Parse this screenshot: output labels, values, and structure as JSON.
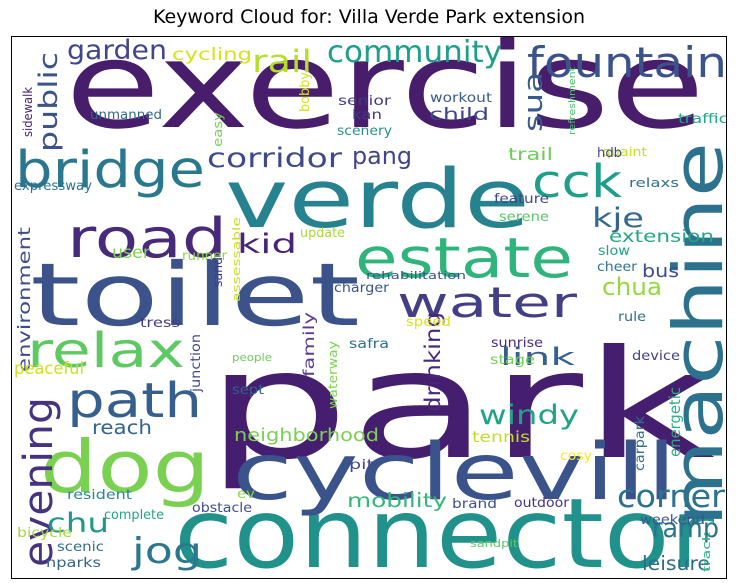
{
  "chart_data": {
    "type": "wordcloud",
    "title": "Keyword Cloud for: Villa Verde Park extension",
    "colormap": "viridis",
    "words": [
      {
        "text": "park",
        "weight": 100,
        "color": "#461e6f"
      },
      {
        "text": "exercise",
        "weight": 80,
        "color": "#471d6c"
      },
      {
        "text": "connector",
        "weight": 64,
        "color": "#21918c"
      },
      {
        "text": "toilet",
        "weight": 58,
        "color": "#3b528b"
      },
      {
        "text": "verde",
        "weight": 54,
        "color": "#25828e"
      },
      {
        "text": "cyclevill",
        "weight": 52,
        "color": "#3a538b"
      },
      {
        "text": "dog",
        "weight": 48,
        "color": "#7ad151"
      },
      {
        "text": "machine",
        "weight": 46,
        "color": "#2c728e"
      },
      {
        "text": "road",
        "weight": 36,
        "color": "#472a7a"
      },
      {
        "text": "estate",
        "weight": 37,
        "color": "#2fb47c"
      },
      {
        "text": "bridge",
        "weight": 34,
        "color": "#2a788e"
      },
      {
        "text": "path",
        "weight": 32,
        "color": "#355f8d"
      },
      {
        "text": "relax",
        "weight": 32,
        "color": "#5ec962"
      },
      {
        "text": "fountain",
        "weight": 28,
        "color": "#3b528b"
      },
      {
        "text": "cck",
        "weight": 30,
        "color": "#1f9e89"
      },
      {
        "text": "water",
        "weight": 28,
        "color": "#433e85"
      },
      {
        "text": "evening",
        "weight": 27,
        "color": "#46327e"
      },
      {
        "text": "jog",
        "weight": 24,
        "color": "#2a788e"
      },
      {
        "text": "corner",
        "weight": 21,
        "color": "#2c728e"
      },
      {
        "text": "rail",
        "weight": 21,
        "color": "#b5de2b"
      },
      {
        "text": "community",
        "weight": 20,
        "color": "#1f9e89"
      },
      {
        "text": "garden",
        "weight": 18,
        "color": "#404688"
      },
      {
        "text": "corridor",
        "weight": 18,
        "color": "#3e4a89"
      },
      {
        "text": "kid",
        "weight": 18,
        "color": "#482475"
      },
      {
        "text": "windy",
        "weight": 18,
        "color": "#20a386"
      },
      {
        "text": "chu",
        "weight": 18,
        "color": "#1f988b"
      },
      {
        "text": "ramp",
        "weight": 18,
        "color": "#2c728e"
      },
      {
        "text": "public",
        "weight": 17,
        "color": "#3b528b"
      },
      {
        "text": "sua",
        "weight": 17,
        "color": "#38598c"
      },
      {
        "text": "kje",
        "weight": 18,
        "color": "#31688e"
      },
      {
        "text": "pang",
        "weight": 16,
        "color": "#414487"
      },
      {
        "text": "link",
        "weight": 16,
        "color": "#355f8d"
      },
      {
        "text": "chua",
        "weight": 16,
        "color": "#95d840"
      },
      {
        "text": "drinking",
        "weight": 14,
        "color": "#482878"
      },
      {
        "text": "reach",
        "weight": 13,
        "color": "#32648e"
      },
      {
        "text": "mobility",
        "weight": 13,
        "color": "#35b779"
      },
      {
        "text": "leisure",
        "weight": 13,
        "color": "#30698e"
      },
      {
        "text": "neighborhood",
        "weight": 12,
        "color": "#7ad151"
      },
      {
        "text": "bus",
        "weight": 12,
        "color": "#3e4c8a"
      },
      {
        "text": "extension",
        "weight": 11,
        "color": "#22a884"
      },
      {
        "text": "environment",
        "weight": 11,
        "color": "#3e4c8a"
      },
      {
        "text": "peaceful",
        "weight": 11,
        "color": "#d0e11c"
      },
      {
        "text": "cycling",
        "weight": 11,
        "color": "#d8e219"
      },
      {
        "text": "child",
        "weight": 11,
        "color": "#3f4788"
      },
      {
        "text": "trail",
        "weight": 11,
        "color": "#6ece58"
      },
      {
        "text": "user",
        "weight": 11,
        "color": "#7fd34e"
      },
      {
        "text": "family",
        "weight": 10,
        "color": "#5c3c8a"
      },
      {
        "text": "energetic",
        "weight": 10,
        "color": "#29af7f"
      },
      {
        "text": "tennis",
        "weight": 10,
        "color": "#bddf26"
      },
      {
        "text": "outdoor",
        "weight": 9,
        "color": "#46337e"
      },
      {
        "text": "weekend",
        "weight": 9,
        "color": "#39568c"
      },
      {
        "text": "resident",
        "weight": 9,
        "color": "#24868e"
      },
      {
        "text": "complete",
        "weight": 9,
        "color": "#20a486"
      },
      {
        "text": "obstacle",
        "weight": 9,
        "color": "#3d4d8a"
      },
      {
        "text": "scenic",
        "weight": 9,
        "color": "#2d708e"
      },
      {
        "text": "nparks",
        "weight": 9,
        "color": "#33638d"
      },
      {
        "text": "sidewalk",
        "weight": 8,
        "color": "#482173"
      },
      {
        "text": "unmanned",
        "weight": 9,
        "color": "#31688e"
      },
      {
        "text": "easy",
        "weight": 8,
        "color": "#73d056"
      },
      {
        "text": "bobby",
        "weight": 9,
        "color": "#d5e21a"
      },
      {
        "text": "senior",
        "weight": 9,
        "color": "#44397f"
      },
      {
        "text": "kan",
        "weight": 9,
        "color": "#443a83"
      },
      {
        "text": "scenery",
        "weight": 9,
        "color": "#20938c"
      },
      {
        "text": "workout",
        "weight": 9,
        "color": "#375b8d"
      },
      {
        "text": "refreshment",
        "weight": 6,
        "color": "#4ac16d"
      },
      {
        "text": "traffic",
        "weight": 9,
        "color": "#22a785"
      },
      {
        "text": "quaint",
        "weight": 8,
        "color": "#c2df23"
      },
      {
        "text": "hdb",
        "weight": 9,
        "color": "#3e4989"
      },
      {
        "text": "expressway",
        "weight": 9,
        "color": "#2e6f8e"
      },
      {
        "text": "feature",
        "weight": 9,
        "color": "#3f4889"
      },
      {
        "text": "relaxs",
        "weight": 8,
        "color": "#2d718e"
      },
      {
        "text": "serene",
        "weight": 9,
        "color": "#56c667"
      },
      {
        "text": "slow",
        "weight": 9,
        "color": "#1fa088"
      },
      {
        "text": "cheer",
        "weight": 9,
        "color": "#2b758e"
      },
      {
        "text": "runner",
        "weight": 9,
        "color": "#8ed645"
      },
      {
        "text": "update",
        "weight": 9,
        "color": "#a8db34"
      },
      {
        "text": "assessable",
        "weight": 7,
        "color": "#c8e020"
      },
      {
        "text": "sand",
        "weight": 8,
        "color": "#443983"
      },
      {
        "text": "rehabilitation",
        "weight": 7,
        "color": "#3a548c"
      },
      {
        "text": "charger",
        "weight": 9,
        "color": "#3b528b"
      },
      {
        "text": "speed",
        "weight": 9,
        "color": "#dde318"
      },
      {
        "text": "tress",
        "weight": 9,
        "color": "#443a83"
      },
      {
        "text": "rule",
        "weight": 9,
        "color": "#2f6c8e"
      },
      {
        "text": "junction",
        "weight": 9,
        "color": "#3f4788"
      },
      {
        "text": "safra",
        "weight": 9,
        "color": "#2c718e"
      },
      {
        "text": "sunrise",
        "weight": 9,
        "color": "#472c7a"
      },
      {
        "text": "people",
        "weight": 7,
        "color": "#6ccd5a"
      },
      {
        "text": "waterway",
        "weight": 8,
        "color": "#7cd250"
      },
      {
        "text": "device",
        "weight": 9,
        "color": "#424186"
      },
      {
        "text": "sept",
        "weight": 9,
        "color": "#34608d"
      },
      {
        "text": "stage",
        "weight": 9,
        "color": "#70cf57"
      },
      {
        "text": "carpark",
        "weight": 9,
        "color": "#2d718e"
      },
      {
        "text": "cosy",
        "weight": 9,
        "color": "#fde725"
      },
      {
        "text": "pit",
        "weight": 9,
        "color": "#3e4a89"
      },
      {
        "text": "ev",
        "weight": 9,
        "color": "#8bd646"
      },
      {
        "text": "brand",
        "weight": 9,
        "color": "#3b528b"
      },
      {
        "text": "bicycle",
        "weight": 9,
        "color": "#a2da37"
      },
      {
        "text": "sandpit",
        "weight": 7,
        "color": "#5dc863"
      },
      {
        "text": "track",
        "weight": 7,
        "color": "#2ab07f"
      }
    ]
  }
}
